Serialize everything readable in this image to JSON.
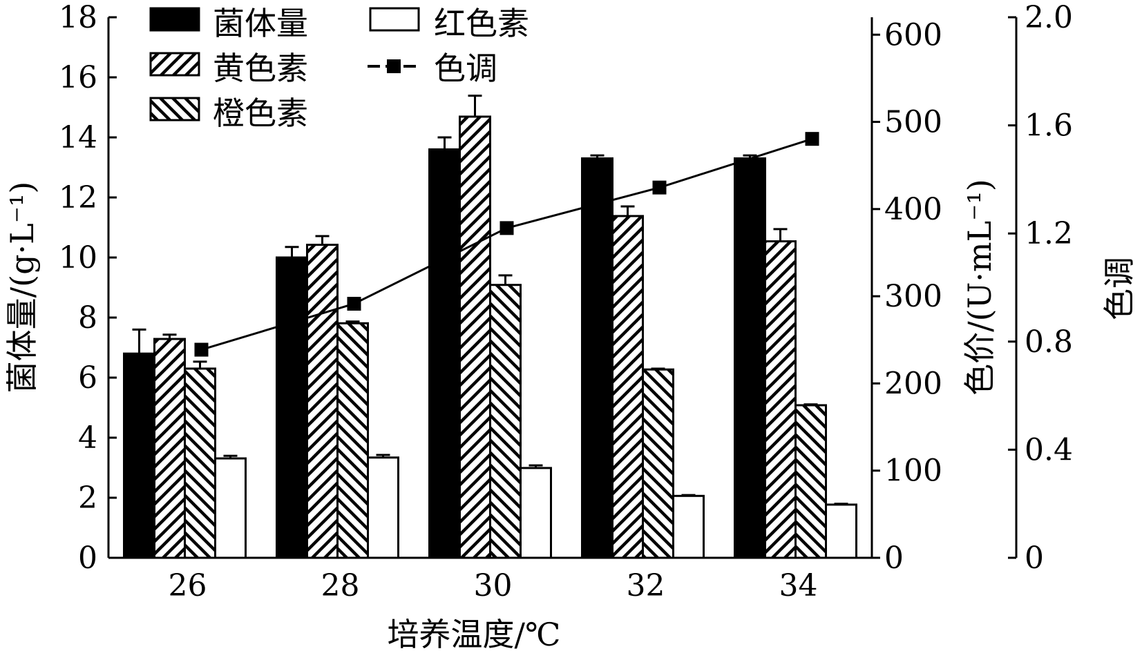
{
  "chart_data": {
    "type": "bar",
    "xlabel": "培养温度/℃",
    "categories": [
      "26",
      "28",
      "30",
      "32",
      "34"
    ],
    "left_axis": {
      "label": "菌体量/(g·L⁻¹)",
      "range": [
        0,
        18
      ],
      "ticks": [
        "0",
        "2",
        "4",
        "6",
        "8",
        "10",
        "12",
        "14",
        "16",
        "18"
      ]
    },
    "right_axis_1": {
      "label": "色价/(U·mL⁻¹)",
      "range": [
        0,
        620
      ],
      "ticks": [
        "0",
        "100",
        "200",
        "300",
        "400",
        "500",
        "600"
      ]
    },
    "right_axis_2": {
      "label": "色调",
      "range": [
        0,
        2.0
      ],
      "ticks": [
        "0",
        "0.4",
        "0.8",
        "1.2",
        "1.6",
        "2.0"
      ]
    },
    "series": [
      {
        "name": "菌体量",
        "axis": "left",
        "fill": "solid",
        "values": [
          6.8,
          10.0,
          13.6,
          13.3,
          13.3
        ],
        "errors": [
          0.8,
          0.35,
          0.4,
          0.1,
          0.1
        ]
      },
      {
        "name": "黄色素",
        "axis": "right1",
        "fill": "hatch-forward",
        "values": [
          251,
          359,
          506,
          392,
          363
        ],
        "errors": [
          5,
          10,
          24,
          11,
          14
        ]
      },
      {
        "name": "橙色素",
        "axis": "right1",
        "fill": "hatch-back",
        "values": [
          217,
          269,
          313,
          216,
          175
        ],
        "errors": [
          8,
          2,
          11,
          1,
          1
        ]
      },
      {
        "name": "红色素",
        "axis": "right1",
        "fill": "none",
        "values": [
          114,
          115,
          103,
          71,
          61
        ],
        "errors": [
          3,
          3,
          3,
          1,
          1
        ]
      }
    ],
    "line_series": {
      "name": "色调",
      "axis": "right2",
      "values": [
        0.77,
        0.94,
        1.22,
        1.37,
        1.55
      ]
    },
    "legend_position": "top-left",
    "colors": {
      "ink": "#000000",
      "background": "#ffffff"
    }
  }
}
